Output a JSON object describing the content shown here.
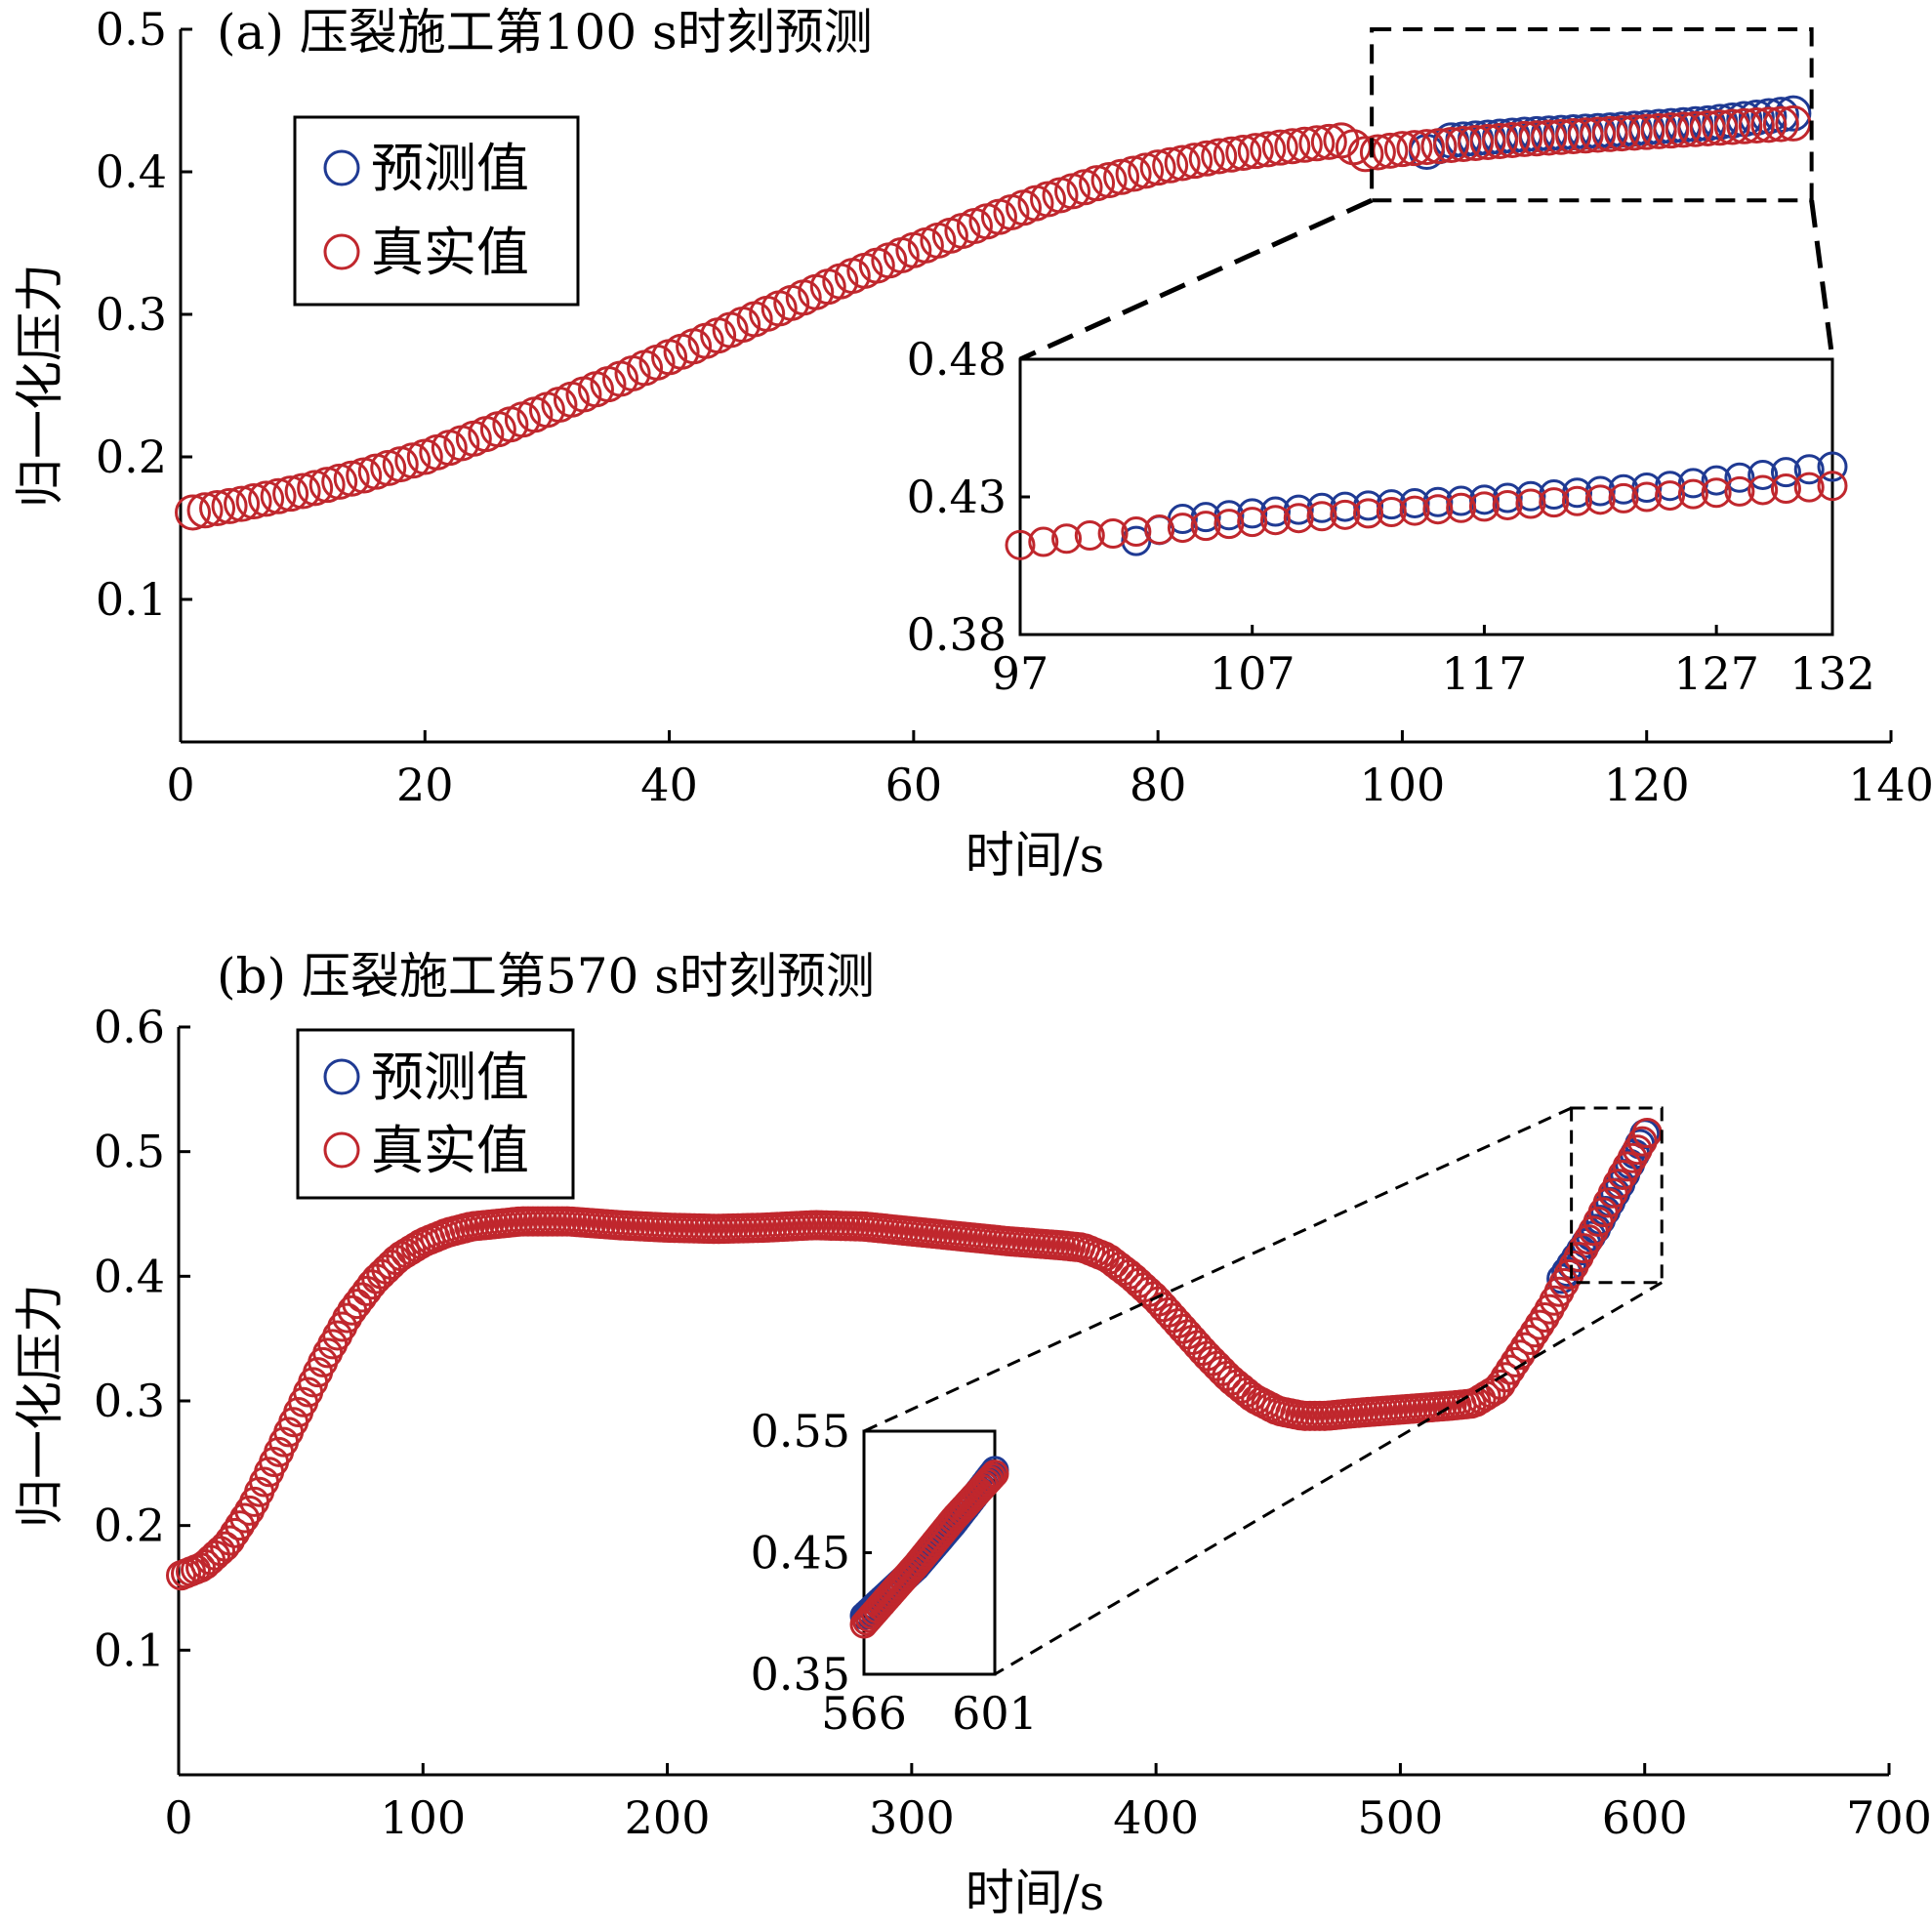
{
  "colors": {
    "predicted": "#1f3a93",
    "actual": "#c0272d",
    "axis": "#000000"
  },
  "legend": {
    "predicted": "预测值",
    "actual": "真实值"
  },
  "chart_data": [
    {
      "type": "scatter",
      "title": "(a) 压裂施工第100 s时刻预测",
      "xlabel": "时间/s",
      "ylabel": "归一化压力",
      "xlim": [
        0,
        140
      ],
      "ylim": [
        0,
        0.5
      ],
      "xticks": [
        0,
        20,
        40,
        60,
        80,
        100,
        120,
        140
      ],
      "yticks": [
        0.1,
        0.2,
        0.3,
        0.4,
        0.5
      ],
      "x_start": 1,
      "x_end": 132,
      "x_step": 1,
      "actual_curve": [
        [
          1,
          0.161
        ],
        [
          5,
          0.167
        ],
        [
          10,
          0.176
        ],
        [
          15,
          0.187
        ],
        [
          20,
          0.2
        ],
        [
          25,
          0.216
        ],
        [
          30,
          0.233
        ],
        [
          35,
          0.251
        ],
        [
          40,
          0.27
        ],
        [
          45,
          0.289
        ],
        [
          50,
          0.308
        ],
        [
          55,
          0.327
        ],
        [
          60,
          0.345
        ],
        [
          65,
          0.362
        ],
        [
          70,
          0.378
        ],
        [
          75,
          0.392
        ],
        [
          80,
          0.403
        ],
        [
          85,
          0.411
        ],
        [
          90,
          0.417
        ],
        [
          95,
          0.422
        ],
        [
          97,
          0.4125
        ],
        [
          100,
          0.416
        ],
        [
          110,
          0.423
        ],
        [
          120,
          0.428
        ],
        [
          132,
          0.434
        ]
      ],
      "predicted_curve": [
        [
          102,
          0.414
        ],
        [
          104,
          0.422
        ],
        [
          110,
          0.426
        ],
        [
          117,
          0.429
        ],
        [
          125,
          0.434
        ],
        [
          132,
          0.441
        ]
      ],
      "legend_position": "upper-left",
      "inset": {
        "xlim": [
          97,
          132
        ],
        "ylim": [
          0.38,
          0.48
        ],
        "xticks": [
          97,
          107,
          117,
          127,
          132
        ],
        "yticks": [
          0.38,
          0.43,
          0.48
        ]
      }
    },
    {
      "type": "scatter",
      "title": "(b) 压裂施工第570 s时刻预测",
      "xlabel": "时间/s",
      "ylabel": "归一化压力",
      "xlim": [
        0,
        700
      ],
      "ylim": [
        0,
        0.6
      ],
      "xticks": [
        0,
        100,
        200,
        300,
        400,
        500,
        600,
        700
      ],
      "yticks": [
        0.1,
        0.2,
        0.3,
        0.4,
        0.5,
        0.6
      ],
      "x_start": 1,
      "x_end": 601,
      "x_step": 2,
      "actual_curve": [
        [
          1,
          0.16
        ],
        [
          10,
          0.167
        ],
        [
          20,
          0.185
        ],
        [
          30,
          0.215
        ],
        [
          40,
          0.255
        ],
        [
          50,
          0.295
        ],
        [
          60,
          0.335
        ],
        [
          70,
          0.37
        ],
        [
          80,
          0.396
        ],
        [
          90,
          0.415
        ],
        [
          100,
          0.427
        ],
        [
          110,
          0.435
        ],
        [
          120,
          0.44
        ],
        [
          140,
          0.444
        ],
        [
          160,
          0.444
        ],
        [
          180,
          0.441
        ],
        [
          200,
          0.439
        ],
        [
          220,
          0.438
        ],
        [
          240,
          0.439
        ],
        [
          260,
          0.441
        ],
        [
          280,
          0.44
        ],
        [
          300,
          0.436
        ],
        [
          320,
          0.432
        ],
        [
          340,
          0.428
        ],
        [
          360,
          0.425
        ],
        [
          370,
          0.423
        ],
        [
          380,
          0.415
        ],
        [
          390,
          0.4
        ],
        [
          400,
          0.382
        ],
        [
          410,
          0.36
        ],
        [
          420,
          0.338
        ],
        [
          430,
          0.318
        ],
        [
          440,
          0.302
        ],
        [
          450,
          0.292
        ],
        [
          460,
          0.288
        ],
        [
          470,
          0.288
        ],
        [
          480,
          0.29
        ],
        [
          500,
          0.293
        ],
        [
          520,
          0.296
        ],
        [
          530,
          0.298
        ],
        [
          540,
          0.31
        ],
        [
          550,
          0.34
        ],
        [
          560,
          0.37
        ],
        [
          570,
          0.405
        ],
        [
          580,
          0.44
        ],
        [
          590,
          0.478
        ],
        [
          601,
          0.515
        ]
      ],
      "predicted_curve": [
        [
          566,
          0.398
        ],
        [
          580,
          0.438
        ],
        [
          590,
          0.474
        ],
        [
          601,
          0.518
        ]
      ],
      "legend_position": "upper-left",
      "inset": {
        "xlim": [
          566,
          601
        ],
        "ylim": [
          0.35,
          0.55
        ],
        "xticks": [
          566,
          601
        ],
        "yticks": [
          0.35,
          0.45,
          0.55
        ]
      }
    }
  ]
}
